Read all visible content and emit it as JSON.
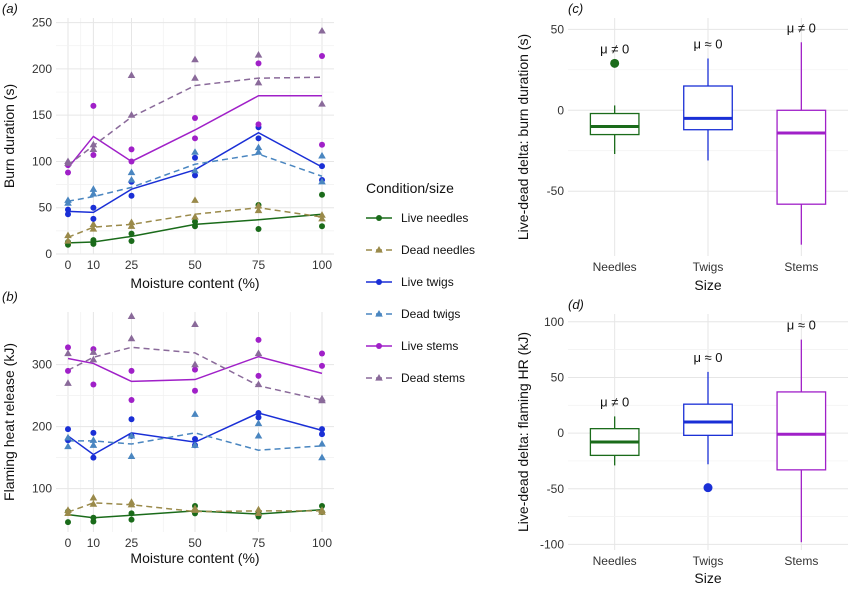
{
  "colors": {
    "live_needles": "#1a6b1a",
    "dead_needles": "#9a8a4a",
    "live_twigs": "#1a2fd6",
    "dead_twigs": "#4a86c0",
    "live_stems": "#a020c8",
    "dead_stems": "#8a6a9a",
    "grid": "#e6e6e6",
    "panel_bg": "#ffffff"
  },
  "legend": {
    "title": "Condition/size",
    "entries": [
      {
        "key": "live_needles",
        "label": "Live needles",
        "dash": false,
        "marker": "circle"
      },
      {
        "key": "dead_needles",
        "label": "Dead needles",
        "dash": true,
        "marker": "triangle"
      },
      {
        "key": "live_twigs",
        "label": "Live twigs",
        "dash": false,
        "marker": "circle"
      },
      {
        "key": "dead_twigs",
        "label": "Dead twigs",
        "dash": true,
        "marker": "triangle"
      },
      {
        "key": "live_stems",
        "label": "Live stems",
        "dash": false,
        "marker": "circle"
      },
      {
        "key": "dead_stems",
        "label": "Dead stems",
        "dash": true,
        "marker": "triangle"
      }
    ]
  },
  "chart_data": [
    {
      "id": "a",
      "panel_label": "(a)",
      "type": "line",
      "xlabel": "Moisture content (%)",
      "ylabel": "Burn duration (s)",
      "x_ticks": [
        "0",
        "10",
        "25",
        "50",
        "75",
        "100"
      ],
      "y_ticks": [
        0,
        50,
        100,
        150,
        200,
        250
      ],
      "ylim": [
        0,
        255
      ],
      "x": [
        0,
        10,
        25,
        50,
        75,
        100
      ],
      "series": [
        {
          "key": "live_needles",
          "line": [
            12,
            13,
            19,
            32,
            37,
            43
          ],
          "points": [
            [
              0,
              10
            ],
            [
              0,
              13
            ],
            [
              10,
              11
            ],
            [
              10,
              15
            ],
            [
              25,
              14
            ],
            [
              25,
              22
            ],
            [
              50,
              30
            ],
            [
              50,
              35
            ],
            [
              75,
              27
            ],
            [
              75,
              53
            ],
            [
              100,
              30
            ],
            [
              100,
              64
            ]
          ]
        },
        {
          "key": "dead_needles",
          "line": [
            18,
            29,
            32,
            43,
            50,
            40
          ],
          "points": [
            [
              0,
              14
            ],
            [
              0,
              20
            ],
            [
              10,
              27
            ],
            [
              10,
              32
            ],
            [
              25,
              30
            ],
            [
              25,
              34
            ],
            [
              50,
              40
            ],
            [
              50,
              58
            ],
            [
              75,
              47
            ],
            [
              75,
              52
            ],
            [
              100,
              38
            ],
            [
              100,
              42
            ]
          ]
        },
        {
          "key": "live_twigs",
          "line": [
            46,
            45,
            70,
            91,
            131,
            94
          ],
          "points": [
            [
              0,
              43
            ],
            [
              0,
              48
            ],
            [
              10,
              38
            ],
            [
              10,
              50
            ],
            [
              25,
              63
            ],
            [
              25,
              78
            ],
            [
              50,
              85
            ],
            [
              50,
              104
            ],
            [
              75,
              125
            ],
            [
              75,
              137
            ],
            [
              100,
              80
            ],
            [
              100,
              95
            ]
          ]
        },
        {
          "key": "dead_twigs",
          "line": [
            57,
            62,
            72,
            97,
            108,
            84
          ],
          "points": [
            [
              0,
              55
            ],
            [
              0,
              58
            ],
            [
              10,
              65
            ],
            [
              10,
              70
            ],
            [
              25,
              80
            ],
            [
              25,
              88
            ],
            [
              50,
              90
            ],
            [
              50,
              110
            ],
            [
              75,
              110
            ],
            [
              75,
              115
            ],
            [
              100,
              78
            ],
            [
              100,
              106
            ]
          ]
        },
        {
          "key": "live_stems",
          "line": [
            93,
            127,
            100,
            134,
            171,
            171
          ],
          "points": [
            [
              0,
              88
            ],
            [
              0,
              96
            ],
            [
              10,
              107
            ],
            [
              10,
              160
            ],
            [
              25,
              100
            ],
            [
              25,
              113
            ],
            [
              50,
              125
            ],
            [
              50,
              147
            ],
            [
              75,
              140
            ],
            [
              75,
              206
            ],
            [
              100,
              118
            ],
            [
              100,
              214
            ]
          ]
        },
        {
          "key": "dead_stems",
          "line": [
            96,
            117,
            148,
            182,
            190,
            191
          ],
          "points": [
            [
              0,
              98
            ],
            [
              0,
              100
            ],
            [
              10,
              113
            ],
            [
              10,
              118
            ],
            [
              25,
              150
            ],
            [
              25,
              193
            ],
            [
              50,
              190
            ],
            [
              50,
              210
            ],
            [
              75,
              185
            ],
            [
              75,
              215
            ],
            [
              100,
              162
            ],
            [
              100,
              241
            ]
          ]
        }
      ]
    },
    {
      "id": "b",
      "panel_label": "(b)",
      "type": "line",
      "xlabel": "Moisture content (%)",
      "ylabel": "Flaming heat release (kJ)",
      "x_ticks": [
        "0",
        "10",
        "25",
        "50",
        "75",
        "100"
      ],
      "y_ticks": [
        100,
        200,
        300
      ],
      "ylim": [
        30,
        385
      ],
      "x": [
        0,
        10,
        25,
        50,
        75,
        100
      ],
      "series": [
        {
          "key": "live_needles",
          "line": [
            58,
            53,
            57,
            64,
            59,
            66
          ],
          "points": [
            [
              0,
              46
            ],
            [
              0,
              63
            ],
            [
              10,
              47
            ],
            [
              10,
              53
            ],
            [
              25,
              50
            ],
            [
              25,
              60
            ],
            [
              50,
              60
            ],
            [
              50,
              72
            ],
            [
              75,
              55
            ],
            [
              75,
              62
            ],
            [
              100,
              62
            ],
            [
              100,
              72
            ]
          ]
        },
        {
          "key": "dead_needles",
          "line": [
            62,
            77,
            74,
            63,
            64,
            64
          ],
          "points": [
            [
              0,
              60
            ],
            [
              0,
              65
            ],
            [
              10,
              75
            ],
            [
              10,
              85
            ],
            [
              25,
              74
            ],
            [
              25,
              78
            ],
            [
              50,
              65
            ],
            [
              50,
              68
            ],
            [
              75,
              60
            ],
            [
              75,
              66
            ],
            [
              100,
              62
            ],
            [
              100,
              65
            ]
          ]
        },
        {
          "key": "live_twigs",
          "line": [
            185,
            155,
            190,
            175,
            222,
            194
          ],
          "points": [
            [
              0,
              178
            ],
            [
              0,
              196
            ],
            [
              10,
              150
            ],
            [
              10,
              190
            ],
            [
              25,
              185
            ],
            [
              25,
              212
            ],
            [
              50,
              170
            ],
            [
              50,
              180
            ],
            [
              75,
              215
            ],
            [
              75,
              222
            ],
            [
              100,
              188
            ],
            [
              100,
              196
            ]
          ]
        },
        {
          "key": "dead_twigs",
          "line": [
            177,
            177,
            172,
            190,
            162,
            169
          ],
          "points": [
            [
              0,
              168
            ],
            [
              0,
              182
            ],
            [
              10,
              170
            ],
            [
              10,
              178
            ],
            [
              25,
              152
            ],
            [
              25,
              185
            ],
            [
              50,
              170
            ],
            [
              50,
              220
            ],
            [
              75,
              185
            ],
            [
              75,
              205
            ],
            [
              100,
              150
            ],
            [
              100,
              172
            ]
          ]
        },
        {
          "key": "live_stems",
          "line": [
            310,
            302,
            273,
            276,
            313,
            286
          ],
          "points": [
            [
              0,
              290
            ],
            [
              0,
              328
            ],
            [
              10,
              268
            ],
            [
              10,
              325
            ],
            [
              25,
              243
            ],
            [
              25,
              290
            ],
            [
              50,
              258
            ],
            [
              50,
              292
            ],
            [
              75,
              282
            ],
            [
              75,
              340
            ],
            [
              100,
              298
            ],
            [
              100,
              318
            ]
          ]
        },
        {
          "key": "dead_stems",
          "line": [
            291,
            312,
            328,
            319,
            266,
            243
          ],
          "points": [
            [
              0,
              270
            ],
            [
              0,
              318
            ],
            [
              10,
              308
            ],
            [
              10,
              320
            ],
            [
              25,
              342
            ],
            [
              25,
              378
            ],
            [
              50,
              300
            ],
            [
              50,
              365
            ],
            [
              75,
              268
            ],
            [
              75,
              318
            ],
            [
              100,
              242
            ],
            [
              100,
              245
            ]
          ]
        }
      ]
    },
    {
      "id": "c",
      "panel_label": "(c)",
      "type": "box",
      "xlabel": "Size",
      "ylabel": "Live-dead delta: burn duration (s)",
      "categories": [
        "Needles",
        "Twigs",
        "Stems"
      ],
      "y_ticks": [
        -50,
        0,
        50
      ],
      "ylim": [
        -90,
        57
      ],
      "boxes": [
        {
          "key": "live_needles",
          "category": "Needles",
          "annotation": "μ ≠ 0",
          "min": -27,
          "q1": -15,
          "median": -10,
          "q3": -2,
          "max": 3,
          "outliers": [
            29
          ]
        },
        {
          "key": "live_twigs",
          "category": "Twigs",
          "annotation": "μ ≈ 0",
          "min": -31,
          "q1": -12,
          "median": -5,
          "q3": 15,
          "max": 32,
          "outliers": []
        },
        {
          "key": "live_stems",
          "category": "Stems",
          "annotation": "μ ≠ 0",
          "min": -83,
          "q1": -58,
          "median": -14,
          "q3": 0,
          "max": 42,
          "outliers": []
        }
      ]
    },
    {
      "id": "d",
      "panel_label": "(d)",
      "type": "box",
      "xlabel": "Size",
      "ylabel": "Live-dead delta: flaming HR (kJ)",
      "categories": [
        "Needles",
        "Twigs",
        "Stems"
      ],
      "y_ticks": [
        -100,
        -50,
        0,
        50,
        100
      ],
      "ylim": [
        -105,
        107
      ],
      "boxes": [
        {
          "key": "live_needles",
          "category": "Needles",
          "annotation": "μ ≠ 0",
          "min": -29,
          "q1": -20,
          "median": -8,
          "q3": 4,
          "max": 15,
          "outliers": []
        },
        {
          "key": "live_twigs",
          "category": "Twigs",
          "annotation": "μ ≈ 0",
          "min": -28,
          "q1": -2,
          "median": 10,
          "q3": 26,
          "max": 55,
          "outliers": [
            -49
          ]
        },
        {
          "key": "live_stems",
          "category": "Stems",
          "annotation": "μ ≈ 0",
          "min": -98,
          "q1": -33,
          "median": -1,
          "q3": 37,
          "max": 84,
          "outliers": []
        }
      ]
    }
  ]
}
